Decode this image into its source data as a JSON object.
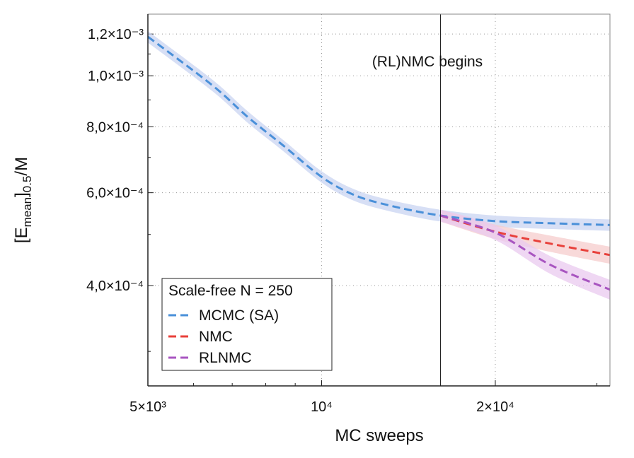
{
  "chart_data": {
    "type": "line",
    "xlabel": "MC sweeps",
    "ylabel_parts": [
      "[E",
      "mean",
      "]",
      "0.5",
      "/M"
    ],
    "xscale": "log",
    "yscale": "log",
    "xlim": [
      5000,
      31600
    ],
    "ylim": [
      0.000258,
      0.001309
    ],
    "xticks": [
      {
        "value": 5000,
        "label": "5×10³"
      },
      {
        "value": 10000,
        "label": "10⁴"
      },
      {
        "value": 20000,
        "label": "2×10⁴"
      }
    ],
    "xminorticks": [
      6000,
      7000,
      8000,
      9000,
      30000
    ],
    "yticks": [
      {
        "value": 0.0004,
        "label": "4,0×10⁻⁴"
      },
      {
        "value": 0.0006,
        "label": "6,0×10⁻⁴"
      },
      {
        "value": 0.0008,
        "label": "8,0×10⁻⁴"
      },
      {
        "value": 0.001,
        "label": "1,0×10⁻³"
      },
      {
        "value": 0.0012,
        "label": "1,2×10⁻³"
      }
    ],
    "yminorticks": [
      0.0003,
      0.0005,
      0.0007,
      0.0009,
      0.0011
    ],
    "grid": true,
    "vline": 16070,
    "annotation": "(RL)NMC begins",
    "legend_title": "Scale-free N = 250",
    "legend": "lower left",
    "series": [
      {
        "name": "MCMC (SA)",
        "color": "#4a90d9",
        "band_color": "#c9d4f2",
        "x": [
          5000,
          6460,
          7440,
          8560,
          10000,
          11350,
          13060,
          16070,
          20000,
          25000,
          31600
        ],
        "values": [
          0.001186,
          0.00096,
          0.000836,
          0.000739,
          0.000643,
          0.000595,
          0.000568,
          0.000543,
          0.00053,
          0.000525,
          0.000521
        ],
        "lower": [
          0.001156,
          0.000936,
          0.000815,
          0.000721,
          0.000627,
          0.00058,
          0.000554,
          0.000529,
          0.000517,
          0.000512,
          0.000508
        ],
        "upper": [
          0.001216,
          0.000984,
          0.000857,
          0.000757,
          0.000659,
          0.00061,
          0.000582,
          0.000557,
          0.000543,
          0.000538,
          0.000534
        ]
      },
      {
        "name": "NMC",
        "color": "#e8403a",
        "band_color": "#f5cccc",
        "x": [
          16070,
          20000,
          25000,
          31600
        ],
        "values": [
          0.000543,
          0.000506,
          0.00048,
          0.000457
        ],
        "lower": [
          0.000529,
          0.00049,
          0.000463,
          0.00044
        ],
        "upper": [
          0.000557,
          0.000522,
          0.000497,
          0.000474
        ]
      },
      {
        "name": "RLNMC",
        "color": "#a855c0",
        "band_color": "#e9c9ef",
        "x": [
          16070,
          20000,
          25000,
          31600
        ],
        "values": [
          0.000543,
          0.000504,
          0.000437,
          0.000393
        ],
        "lower": [
          0.000529,
          0.000488,
          0.00042,
          0.000376
        ],
        "upper": [
          0.000557,
          0.00052,
          0.000454,
          0.00041
        ]
      }
    ]
  }
}
